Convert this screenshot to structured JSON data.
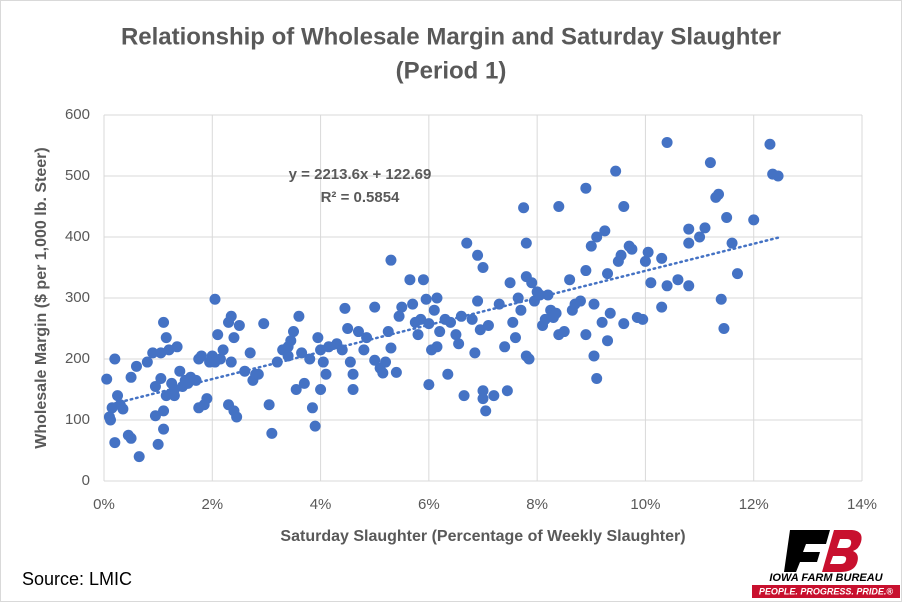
{
  "chart_data": {
    "type": "scatter",
    "title": [
      "Relationship of Wholesale Margin and Saturday Slaughter",
      "(Period 1)"
    ],
    "x_label": "Saturday Slaughter (Percentage of Weekly Slaughter)",
    "y_label": "Wholesale Margin ($ per 1,000 lb. Steer)",
    "color": "#4472c4",
    "grid": true,
    "xlim": [
      0,
      14
    ],
    "xticks": [
      {
        "value": 0,
        "label": "0%"
      },
      {
        "value": 2,
        "label": "2%"
      },
      {
        "value": 4,
        "label": "4%"
      },
      {
        "value": 6,
        "label": "6%"
      },
      {
        "value": 8,
        "label": "8%"
      },
      {
        "value": 10,
        "label": "10%"
      },
      {
        "value": 12,
        "label": "12%"
      },
      {
        "value": 14,
        "label": "14%"
      }
    ],
    "ylim": [
      0,
      600
    ],
    "yticks": [
      0,
      100,
      200,
      300,
      400,
      500,
      600
    ],
    "trendline": {
      "x": [
        0.1,
        12.5
      ],
      "y": [
        125,
        400
      ],
      "equation": "y = 2213.6x + 122.69",
      "r_squared": "R² = 0.5854"
    },
    "x": [
      0.05,
      0.1,
      0.12,
      0.15,
      0.2,
      0.25,
      0.2,
      0.3,
      0.35,
      0.45,
      0.5,
      0.5,
      0.6,
      0.65,
      0.8,
      0.9,
      0.95,
      0.95,
      1.0,
      1.05,
      1.05,
      1.1,
      1.1,
      1.1,
      1.15,
      1.15,
      1.2,
      1.25,
      1.3,
      1.3,
      1.35,
      1.4,
      1.45,
      1.5,
      1.55,
      1.6,
      1.7,
      1.75,
      1.75,
      1.8,
      1.85,
      1.9,
      1.95,
      2.0,
      2.05,
      2.05,
      2.1,
      2.15,
      2.2,
      2.3,
      2.3,
      2.35,
      2.35,
      2.4,
      2.4,
      2.45,
      2.5,
      2.6,
      2.7,
      2.75,
      2.8,
      2.85,
      2.95,
      3.05,
      3.1,
      3.2,
      3.3,
      3.4,
      3.4,
      3.45,
      3.5,
      3.55,
      3.6,
      3.65,
      3.7,
      3.8,
      3.85,
      3.9,
      3.95,
      4.0,
      4.0,
      4.05,
      4.1,
      4.15,
      4.3,
      4.4,
      4.45,
      4.5,
      4.55,
      4.6,
      4.6,
      4.7,
      4.8,
      4.85,
      5.0,
      5.0,
      5.1,
      5.15,
      5.2,
      5.25,
      5.3,
      5.3,
      5.4,
      5.45,
      5.5,
      5.65,
      5.7,
      5.75,
      5.8,
      5.85,
      5.9,
      5.95,
      6.0,
      6.0,
      6.05,
      6.1,
      6.15,
      6.15,
      6.2,
      6.3,
      6.35,
      6.4,
      6.5,
      6.55,
      6.6,
      6.65,
      6.7,
      6.8,
      6.85,
      6.9,
      6.9,
      6.95,
      7.0,
      7.0,
      7.0,
      7.05,
      7.1,
      7.2,
      7.3,
      7.4,
      7.45,
      7.5,
      7.55,
      7.6,
      7.65,
      7.7,
      7.75,
      7.8,
      7.8,
      7.8,
      7.85,
      7.9,
      7.95,
      8.0,
      8.05,
      8.1,
      8.15,
      8.2,
      8.25,
      8.3,
      8.35,
      8.4,
      8.4,
      8.5,
      8.6,
      8.65,
      8.7,
      8.8,
      8.9,
      8.9,
      8.9,
      9.0,
      9.05,
      9.05,
      9.1,
      9.1,
      9.2,
      9.25,
      9.3,
      9.3,
      9.35,
      9.45,
      9.5,
      9.55,
      9.6,
      9.6,
      9.7,
      9.75,
      9.85,
      9.95,
      10.0,
      10.05,
      10.1,
      10.3,
      10.4,
      10.4,
      10.3,
      10.6,
      10.8,
      10.8,
      10.8,
      11.0,
      11.1,
      11.2,
      11.3,
      11.35,
      11.4,
      11.45,
      11.5,
      11.6,
      11.7,
      12.0,
      12.3,
      12.35,
      12.45
    ],
    "values": [
      167,
      105,
      100,
      120,
      200,
      140,
      63,
      125,
      118,
      75,
      70,
      170,
      188,
      40,
      195,
      210,
      107,
      155,
      60,
      168,
      210,
      260,
      115,
      85,
      140,
      235,
      215,
      160,
      150,
      140,
      220,
      180,
      155,
      165,
      160,
      170,
      165,
      200,
      120,
      205,
      125,
      135,
      195,
      205,
      195,
      298,
      240,
      200,
      215,
      260,
      125,
      270,
      195,
      235,
      115,
      105,
      255,
      180,
      210,
      165,
      175,
      175,
      258,
      125,
      78,
      195,
      215,
      220,
      205,
      230,
      245,
      150,
      270,
      210,
      160,
      200,
      120,
      90,
      235,
      215,
      150,
      195,
      175,
      220,
      225,
      215,
      283,
      250,
      195,
      175,
      150,
      245,
      215,
      235,
      285,
      198,
      185,
      177,
      195,
      245,
      362,
      218,
      178,
      270,
      285,
      330,
      290,
      260,
      240,
      265,
      330,
      298,
      258,
      158,
      215,
      280,
      220,
      300,
      245,
      265,
      175,
      260,
      240,
      225,
      270,
      140,
      390,
      265,
      210,
      370,
      295,
      248,
      350,
      148,
      135,
      115,
      255,
      140,
      290,
      220,
      148,
      325,
      260,
      235,
      300,
      280,
      448,
      390,
      335,
      205,
      200,
      325,
      295,
      310,
      305,
      255,
      265,
      305,
      280,
      268,
      275,
      450,
      240,
      245,
      330,
      280,
      290,
      295,
      480,
      345,
      240,
      385,
      290,
      205,
      400,
      168,
      260,
      410,
      340,
      230,
      275,
      508,
      360,
      370,
      450,
      258,
      385,
      380,
      268,
      265,
      360,
      375,
      325,
      285,
      555,
      320,
      365,
      330,
      390,
      413,
      320,
      400,
      415,
      522,
      465,
      470,
      298,
      250,
      432,
      390,
      340,
      428,
      552,
      503,
      500
    ],
    "source": "Source: LMIC",
    "logo": {
      "name": "IOWA FARM BUREAU",
      "tagline": "PEOPLE. PROGRESS. PRIDE.®"
    }
  }
}
